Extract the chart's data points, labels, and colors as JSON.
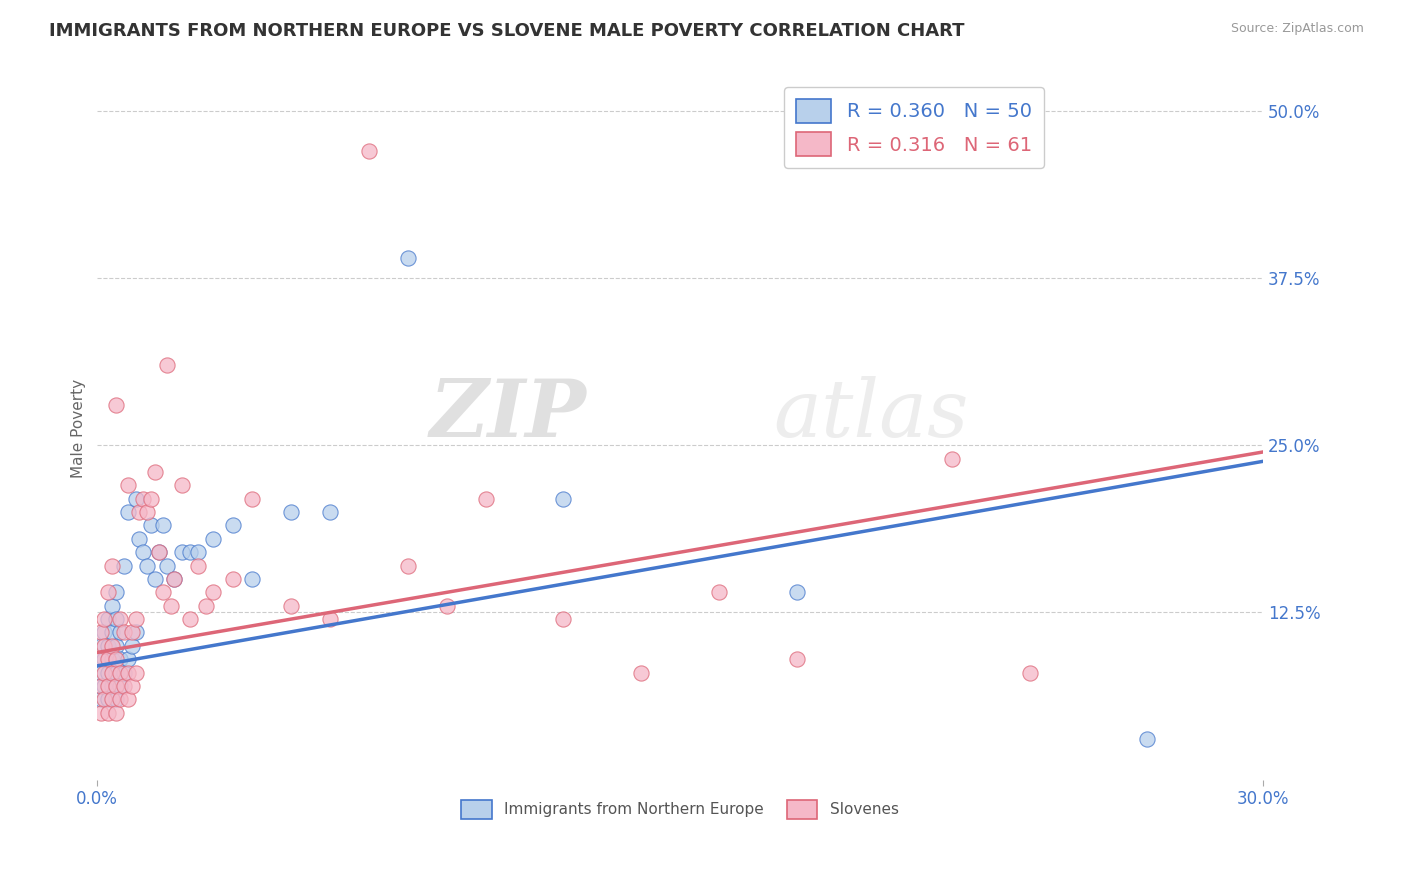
{
  "title": "IMMIGRANTS FROM NORTHERN EUROPE VS SLOVENE MALE POVERTY CORRELATION CHART",
  "source": "Source: ZipAtlas.com",
  "ylabel": "Male Poverty",
  "xlim": [
    0.0,
    0.3
  ],
  "ylim": [
    0.0,
    0.525
  ],
  "xtick_labels": [
    "0.0%",
    "30.0%"
  ],
  "xtick_vals": [
    0.0,
    0.3
  ],
  "ytick_labels_right": [
    "50.0%",
    "37.5%",
    "25.0%",
    "12.5%"
  ],
  "ytick_vals_right": [
    0.5,
    0.375,
    0.25,
    0.125
  ],
  "grid_color": "#cccccc",
  "background_color": "#ffffff",
  "series1_color": "#b8d0eb",
  "series2_color": "#f5b8c8",
  "series1_label": "Immigrants from Northern Europe",
  "series2_label": "Slovenes",
  "legend_r1": "R = 0.360",
  "legend_n1": "N = 50",
  "legend_r2": "R = 0.316",
  "legend_n2": "N = 61",
  "line1_color": "#4477cc",
  "line2_color": "#dd6677",
  "watermark_bold": "ZIP",
  "watermark_light": "atlas",
  "title_fontsize": 13,
  "axis_label_fontsize": 11,
  "tick_fontsize": 12,
  "series1_x": [
    0.001,
    0.001,
    0.001,
    0.002,
    0.002,
    0.002,
    0.003,
    0.003,
    0.003,
    0.003,
    0.004,
    0.004,
    0.004,
    0.004,
    0.005,
    0.005,
    0.005,
    0.005,
    0.005,
    0.006,
    0.006,
    0.006,
    0.007,
    0.007,
    0.008,
    0.008,
    0.009,
    0.01,
    0.01,
    0.011,
    0.012,
    0.013,
    0.014,
    0.015,
    0.016,
    0.017,
    0.018,
    0.02,
    0.022,
    0.024,
    0.026,
    0.03,
    0.035,
    0.04,
    0.05,
    0.06,
    0.08,
    0.12,
    0.18,
    0.27
  ],
  "series1_y": [
    0.06,
    0.08,
    0.1,
    0.07,
    0.09,
    0.11,
    0.06,
    0.08,
    0.1,
    0.12,
    0.07,
    0.09,
    0.11,
    0.13,
    0.06,
    0.08,
    0.1,
    0.12,
    0.14,
    0.07,
    0.09,
    0.11,
    0.08,
    0.16,
    0.09,
    0.2,
    0.1,
    0.11,
    0.21,
    0.18,
    0.17,
    0.16,
    0.19,
    0.15,
    0.17,
    0.19,
    0.16,
    0.15,
    0.17,
    0.17,
    0.17,
    0.18,
    0.19,
    0.15,
    0.2,
    0.2,
    0.39,
    0.21,
    0.14,
    0.03
  ],
  "series2_x": [
    0.001,
    0.001,
    0.001,
    0.001,
    0.002,
    0.002,
    0.002,
    0.002,
    0.003,
    0.003,
    0.003,
    0.003,
    0.004,
    0.004,
    0.004,
    0.004,
    0.005,
    0.005,
    0.005,
    0.005,
    0.006,
    0.006,
    0.006,
    0.007,
    0.007,
    0.008,
    0.008,
    0.008,
    0.009,
    0.009,
    0.01,
    0.01,
    0.011,
    0.012,
    0.013,
    0.014,
    0.015,
    0.016,
    0.017,
    0.018,
    0.019,
    0.02,
    0.022,
    0.024,
    0.026,
    0.028,
    0.03,
    0.035,
    0.04,
    0.05,
    0.06,
    0.07,
    0.08,
    0.09,
    0.1,
    0.12,
    0.14,
    0.16,
    0.18,
    0.22,
    0.24
  ],
  "series2_y": [
    0.05,
    0.07,
    0.09,
    0.11,
    0.06,
    0.08,
    0.1,
    0.12,
    0.05,
    0.07,
    0.09,
    0.14,
    0.06,
    0.08,
    0.1,
    0.16,
    0.05,
    0.07,
    0.09,
    0.28,
    0.06,
    0.08,
    0.12,
    0.07,
    0.11,
    0.06,
    0.08,
    0.22,
    0.07,
    0.11,
    0.08,
    0.12,
    0.2,
    0.21,
    0.2,
    0.21,
    0.23,
    0.17,
    0.14,
    0.31,
    0.13,
    0.15,
    0.22,
    0.12,
    0.16,
    0.13,
    0.14,
    0.15,
    0.21,
    0.13,
    0.12,
    0.47,
    0.16,
    0.13,
    0.21,
    0.12,
    0.08,
    0.14,
    0.09,
    0.24,
    0.08
  ],
  "trend1_x0": 0.0,
  "trend1_y0": 0.085,
  "trend1_x1": 0.3,
  "trend1_y1": 0.238,
  "trend2_x0": 0.0,
  "trend2_y0": 0.095,
  "trend2_x1": 0.3,
  "trend2_y1": 0.245
}
